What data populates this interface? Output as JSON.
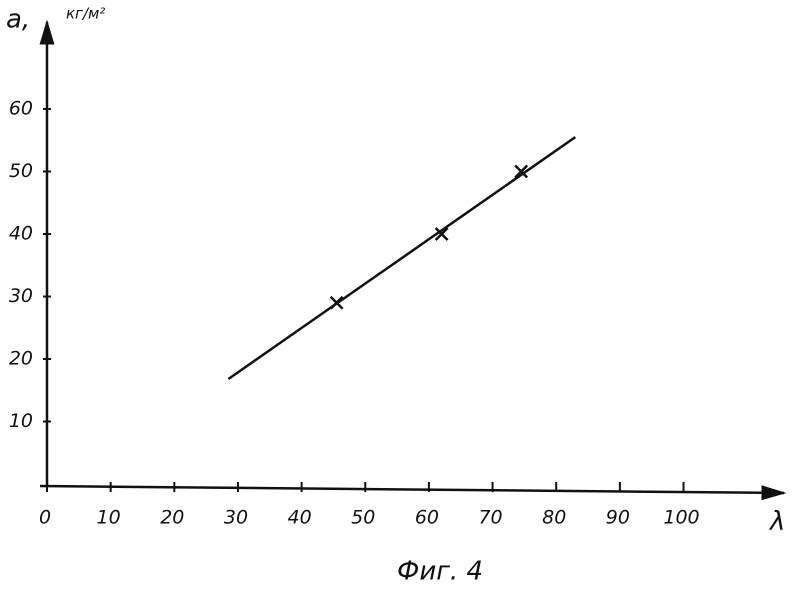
{
  "chart_data": {
    "type": "scatter",
    "y_label": "а,",
    "y_unit": "кг/м²",
    "x_label": "λ",
    "caption": "Фиг. 4",
    "x": [
      45.5,
      62,
      74.5
    ],
    "values": [
      29,
      40,
      50
    ],
    "color": "#111111",
    "fit_line": {
      "x": [
        28.5,
        83
      ],
      "values": [
        16.8,
        55.5
      ]
    },
    "xlim": [
      0,
      115
    ],
    "ylim": [
      0,
      74
    ],
    "xticks": [
      0,
      10,
      20,
      30,
      40,
      50,
      60,
      70,
      80,
      90,
      100
    ],
    "yticks": [
      10,
      20,
      30,
      40,
      50,
      60
    ],
    "grid": false
  }
}
